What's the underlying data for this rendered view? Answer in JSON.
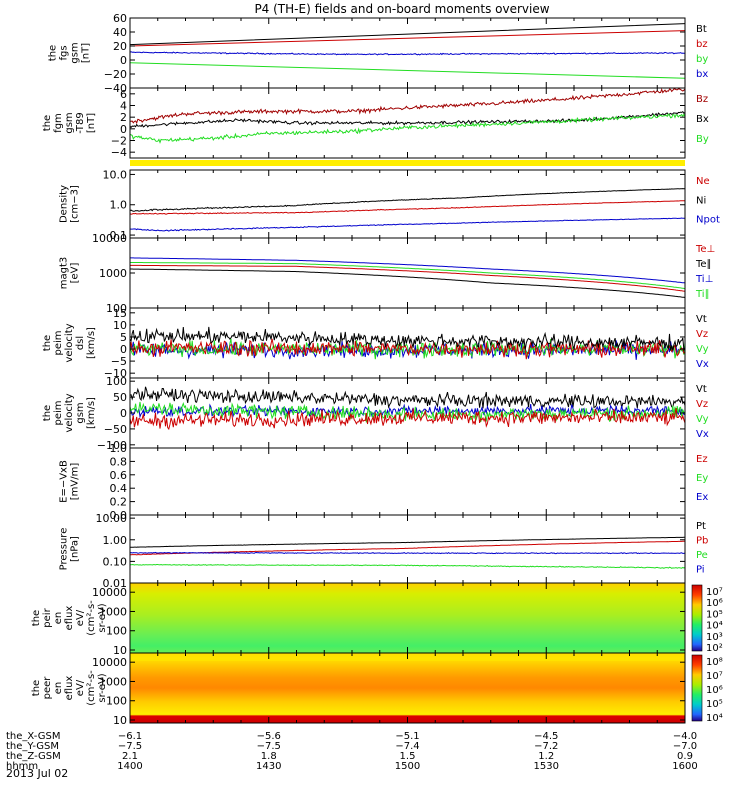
{
  "title": "P4 (TH-E) fields and on-board moments overview",
  "date_label": "2013 Jul 02",
  "colors": {
    "black": "#000000",
    "red": "#cc0000",
    "darkred": "#a00000",
    "green": "#22dd22",
    "blue": "#0000cc",
    "yellow": "#ffee00"
  },
  "chart_data": [
    {
      "type": "line",
      "ylabel": [
        "the",
        "fgs",
        "gsm",
        "[nT]"
      ],
      "yticks": [
        "60",
        "40",
        "20",
        "0",
        "−20",
        "−40"
      ],
      "ylim": [
        -40,
        60
      ],
      "scale": "linear",
      "legend": [
        {
          "name": "Bt",
          "color": "#000000"
        },
        {
          "name": "bz",
          "color": "#cc0000"
        },
        {
          "name": "by",
          "color": "#22dd22"
        },
        {
          "name": "bx",
          "color": "#0000cc"
        }
      ],
      "series": [
        {
          "name": "Bt",
          "color": "#000000",
          "x": [
            1400,
            1600
          ],
          "y": [
            22,
            52
          ],
          "noise": 0
        },
        {
          "name": "bz",
          "color": "#cc0000",
          "x": [
            1400,
            1600
          ],
          "y": [
            20,
            42
          ],
          "noise": 0
        },
        {
          "name": "by",
          "color": "#22dd22",
          "x": [
            1400,
            1600
          ],
          "y": [
            -4,
            -26
          ],
          "noise": 0
        },
        {
          "name": "bx",
          "color": "#0000cc",
          "x": [
            1400,
            1480,
            1600
          ],
          "y": [
            11,
            8,
            10
          ],
          "noise": 0.6
        }
      ]
    },
    {
      "type": "line",
      "ylabel": [
        "the",
        "fgm",
        "gsm",
        "-T89",
        "[nT]"
      ],
      "yticks": [
        "6",
        "4",
        "2",
        "0",
        "−2",
        "−4"
      ],
      "ylim": [
        -5,
        7
      ],
      "scale": "linear",
      "legend": [
        {
          "name": "Bz",
          "color": "#a00000"
        },
        {
          "name": "Bx",
          "color": "#000000"
        },
        {
          "name": "By",
          "color": "#22dd22"
        }
      ],
      "series": [
        {
          "name": "Bz",
          "color": "#a00000",
          "x": [
            1400,
            1420,
            1450,
            1480,
            1500,
            1530,
            1560,
            1600
          ],
          "y": [
            1.2,
            2.6,
            3.0,
            3.0,
            3.6,
            4.3,
            5.2,
            6.8
          ],
          "noise": 0.25
        },
        {
          "name": "Bx",
          "color": "#000000",
          "x": [
            1400,
            1420,
            1440,
            1460,
            1480,
            1500,
            1530,
            1560,
            1600
          ],
          "y": [
            0.4,
            1.0,
            1.5,
            1.0,
            1.0,
            1.0,
            1.2,
            1.4,
            2.8
          ],
          "noise": 0.2
        },
        {
          "name": "By",
          "color": "#22dd22",
          "x": [
            1400,
            1410,
            1430,
            1450,
            1480,
            1500,
            1530,
            1560,
            1600
          ],
          "y": [
            -1.2,
            -2.0,
            -1.6,
            -0.8,
            -0.4,
            0.2,
            0.8,
            1.4,
            2.4
          ],
          "noise": 0.25
        }
      ]
    },
    {
      "type": "line",
      "ylabel": [
        "Density",
        "[cm−3]"
      ],
      "yticks": [
        "10.0",
        "1.0",
        "0.1"
      ],
      "ylim": [
        0.08,
        14
      ],
      "scale": "log",
      "legend": [
        {
          "name": "Ne",
          "color": "#cc0000"
        },
        {
          "name": "Ni",
          "color": "#000000"
        },
        {
          "name": "Npot",
          "color": "#0000cc"
        }
      ],
      "series": [
        {
          "name": "Ni",
          "color": "#000000",
          "x": [
            1400,
            1460,
            1520,
            1600
          ],
          "y": [
            0.62,
            0.95,
            1.7,
            3.4
          ],
          "noise": 0.03
        },
        {
          "name": "Ne",
          "color": "#cc0000",
          "x": [
            1400,
            1460,
            1520,
            1600
          ],
          "y": [
            0.5,
            0.55,
            0.8,
            1.35
          ],
          "noise": 0.015
        },
        {
          "name": "Npot",
          "color": "#0000cc",
          "x": [
            1400,
            1412,
            1460,
            1520,
            1600
          ],
          "y": [
            0.16,
            0.14,
            0.18,
            0.25,
            0.36
          ],
          "noise": 0.005
        }
      ]
    },
    {
      "type": "line",
      "ylabel": [
        "magt3",
        "[eV]"
      ],
      "yticks": [
        "10000",
        "1000",
        "100"
      ],
      "ylim": [
        100,
        10000
      ],
      "scale": "log",
      "legend": [
        {
          "name": "Te⊥",
          "color": "#cc0000"
        },
        {
          "name": "Te∥",
          "color": "#000000"
        },
        {
          "name": "Ti⊥",
          "color": "#0000cc"
        },
        {
          "name": "Ti∥",
          "color": "#22dd22"
        }
      ],
      "series": [
        {
          "name": "Ti⊥",
          "color": "#0000cc",
          "x": [
            1400,
            1460,
            1530,
            1600
          ],
          "y": [
            2700,
            2300,
            1300,
            520
          ],
          "noise": 0.02
        },
        {
          "name": "Ti∥",
          "color": "#22dd22",
          "x": [
            1400,
            1460,
            1530,
            1600
          ],
          "y": [
            2000,
            1850,
            1000,
            360
          ],
          "noise": 0.02
        },
        {
          "name": "Te⊥",
          "color": "#cc0000",
          "x": [
            1400,
            1460,
            1530,
            1600
          ],
          "y": [
            1650,
            1550,
            850,
            300
          ],
          "noise": 0.015
        },
        {
          "name": "Te∥",
          "color": "#000000",
          "x": [
            1400,
            1460,
            1530,
            1600
          ],
          "y": [
            1300,
            1100,
            520,
            200
          ],
          "noise": 0.015
        }
      ]
    },
    {
      "type": "line",
      "ylabel": [
        "the",
        "peim",
        "velocity",
        "dsl",
        "[km/s]"
      ],
      "yticks": [
        "15",
        "10",
        "5",
        "0",
        "−5",
        "−10"
      ],
      "ylim": [
        -12,
        17
      ],
      "scale": "linear",
      "legend": [
        {
          "name": "Vt",
          "color": "#000000"
        },
        {
          "name": "Vz",
          "color": "#cc0000"
        },
        {
          "name": "Vy",
          "color": "#22dd22"
        },
        {
          "name": "Vx",
          "color": "#0000cc"
        }
      ],
      "series": [
        {
          "name": "Vx",
          "color": "#0000cc",
          "x": [
            1400,
            1600
          ],
          "y": [
            -0.5,
            -0.5
          ],
          "noise": 2.2
        },
        {
          "name": "Vy",
          "color": "#22dd22",
          "x": [
            1400,
            1600
          ],
          "y": [
            0,
            0
          ],
          "noise": 2.4
        },
        {
          "name": "Vz",
          "color": "#cc0000",
          "x": [
            1400,
            1600
          ],
          "y": [
            0.5,
            0
          ],
          "noise": 2.4
        },
        {
          "name": "Vt",
          "color": "#000000",
          "x": [
            1400,
            1450,
            1500,
            1600
          ],
          "y": [
            5.5,
            5,
            3.5,
            2.5
          ],
          "noise": 2.2
        }
      ]
    },
    {
      "type": "line",
      "ylabel": [
        "the",
        "peim",
        "velocity",
        "gsm",
        "[km/s]"
      ],
      "yticks": [
        "100",
        "50",
        "0",
        "−50",
        "−100"
      ],
      "ylim": [
        -110,
        110
      ],
      "scale": "linear",
      "legend": [
        {
          "name": "Vt",
          "color": "#000000"
        },
        {
          "name": "Vz",
          "color": "#cc0000"
        },
        {
          "name": "Vy",
          "color": "#22dd22"
        },
        {
          "name": "Vx",
          "color": "#0000cc"
        }
      ],
      "series": [
        {
          "name": "Vt",
          "color": "#000000",
          "x": [
            1400,
            1500,
            1600
          ],
          "y": [
            60,
            40,
            35
          ],
          "noise": 16
        },
        {
          "name": "Vx",
          "color": "#0000cc",
          "x": [
            1400,
            1600
          ],
          "y": [
            5,
            8
          ],
          "noise": 12
        },
        {
          "name": "Vy",
          "color": "#22dd22",
          "x": [
            1400,
            1500,
            1600
          ],
          "y": [
            15,
            -5,
            0
          ],
          "noise": 16
        },
        {
          "name": "Vz",
          "color": "#cc0000",
          "x": [
            1400,
            1500,
            1600
          ],
          "y": [
            -25,
            -15,
            -15
          ],
          "noise": 18
        }
      ]
    },
    {
      "type": "line",
      "ylabel": [
        "E=−VxB",
        "[mV/m]"
      ],
      "yticks": [
        "1.0",
        "0.8",
        "0.6",
        "0.4",
        "0.2",
        "0.0"
      ],
      "ylim": [
        0,
        1
      ],
      "scale": "linear",
      "legend": [
        {
          "name": "Ez",
          "color": "#cc0000"
        },
        {
          "name": "Ey",
          "color": "#22dd22"
        },
        {
          "name": "Ex",
          "color": "#0000cc"
        }
      ],
      "series": []
    },
    {
      "type": "line",
      "ylabel": [
        "Pressure",
        "[nPa]"
      ],
      "yticks": [
        "10.00",
        "1.00",
        "0.10",
        "0.01"
      ],
      "ylim": [
        0.01,
        14
      ],
      "scale": "log",
      "legend": [
        {
          "name": "Pt",
          "color": "#000000"
        },
        {
          "name": "Pb",
          "color": "#cc0000"
        },
        {
          "name": "Pe",
          "color": "#22dd22"
        },
        {
          "name": "Pi",
          "color": "#0000cc"
        }
      ],
      "series": [
        {
          "name": "Pt",
          "color": "#000000",
          "x": [
            1400,
            1500,
            1600
          ],
          "y": [
            0.45,
            0.75,
            1.3
          ],
          "noise": 0.005
        },
        {
          "name": "Pb",
          "color": "#cc0000",
          "x": [
            1400,
            1500,
            1600
          ],
          "y": [
            0.2,
            0.4,
            0.85
          ],
          "noise": 0.004
        },
        {
          "name": "Pi",
          "color": "#0000cc",
          "x": [
            1400,
            1500,
            1600
          ],
          "y": [
            0.25,
            0.24,
            0.24
          ],
          "noise": 0.008
        },
        {
          "name": "Pe",
          "color": "#22dd22",
          "x": [
            1400,
            1500,
            1600
          ],
          "y": [
            0.07,
            0.065,
            0.05
          ],
          "noise": 0.002
        }
      ]
    },
    {
      "type": "heatmap",
      "ylabel": [
        "the",
        "peir",
        "en",
        "eflux",
        "eV/",
        "(cm²-s-",
        "sr-eV)"
      ],
      "yticks": [
        "10000",
        "1000",
        "100",
        "10"
      ],
      "ylim": [
        7,
        30000
      ],
      "scale": "log",
      "colorbar": [
        "10⁷",
        "10⁶",
        "10⁵",
        "10⁴",
        "10³",
        "10²"
      ]
    },
    {
      "type": "heatmap",
      "ylabel": [
        "the",
        "peer",
        "en",
        "eflux",
        "eV/",
        "(cm²-s-",
        "sr-eV)"
      ],
      "yticks": [
        "10000",
        "1000",
        "100",
        "10"
      ],
      "ylim": [
        7,
        30000
      ],
      "scale": "log",
      "colorbar": [
        "10⁸",
        "10⁷",
        "10⁶",
        "10⁵",
        "10⁴"
      ]
    }
  ],
  "x_axis": {
    "rows": [
      {
        "label": "the_X-GSM",
        "values": [
          "−6.1",
          "−5.6",
          "−5.1",
          "−4.5",
          "−4.0"
        ]
      },
      {
        "label": "the_Y-GSM",
        "values": [
          "−7.5",
          "−7.5",
          "−7.4",
          "−7.2",
          "−7.0"
        ]
      },
      {
        "label": "the_Z-GSM",
        "values": [
          "2.1",
          "1.8",
          "1.5",
          "1.2",
          "0.9"
        ]
      },
      {
        "label": "hhmm",
        "values": [
          "1400",
          "1430",
          "1500",
          "1530",
          "1600"
        ]
      }
    ],
    "range": [
      1400,
      1600
    ]
  }
}
